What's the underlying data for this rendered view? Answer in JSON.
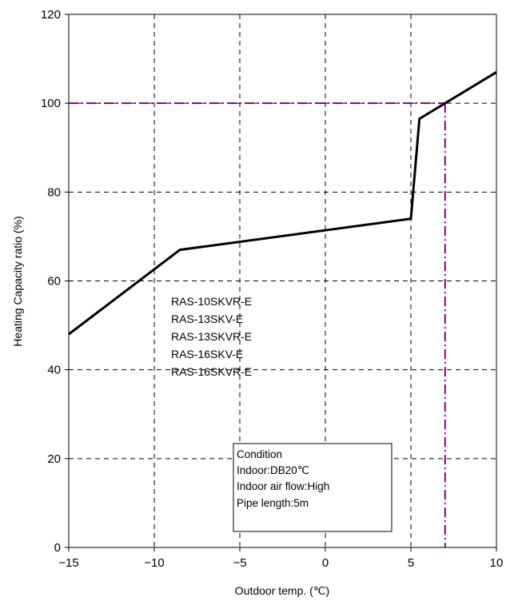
{
  "chart_data": {
    "type": "line",
    "title": "",
    "xlabel": "Outdoor temp. (℃)",
    "ylabel": "Heating Capacity ratio (%)",
    "xlim": [
      -15,
      10
    ],
    "ylim": [
      0,
      120
    ],
    "xticks": [
      -15,
      -10,
      -5,
      0,
      5,
      10
    ],
    "yticks": [
      0,
      20,
      40,
      60,
      80,
      100,
      120
    ],
    "xtick_labels": [
      "−15",
      "−10",
      "−5",
      "0",
      "5",
      "10"
    ],
    "ytick_labels": [
      "0",
      "20",
      "40",
      "60",
      "80",
      "100",
      "120"
    ],
    "grid": true,
    "series": [
      {
        "color": "#000000",
        "x": [
          -15,
          -8.5,
          5,
          5.5,
          10
        ],
        "y": [
          48,
          67,
          74,
          96.5,
          107
        ]
      }
    ],
    "reference_lines": {
      "color": "#800080",
      "x": 7,
      "y": 100
    },
    "annotations": {
      "models": [
        "RAS-10SKVR-E",
        "RAS-13SKV-E",
        "RAS-13SKVR-E",
        "RAS-16SKV-E",
        "RAS-16SKVR-E"
      ],
      "condition": [
        "Condition",
        "Indoor:DB20℃",
        "Indoor air flow:High",
        "Pipe length:5m"
      ]
    }
  }
}
